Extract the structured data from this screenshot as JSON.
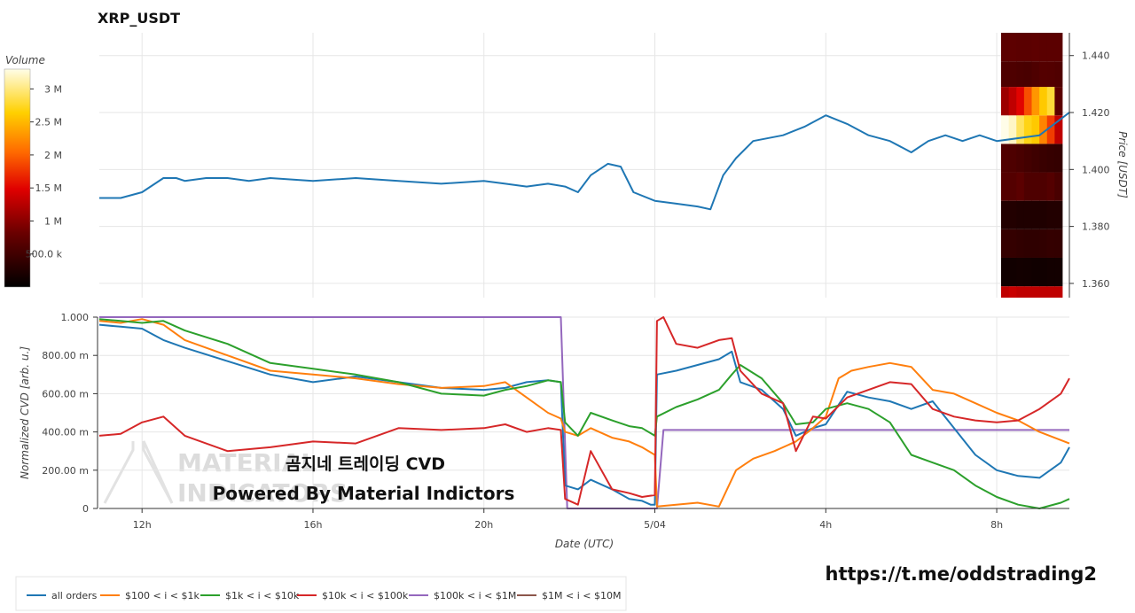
{
  "title": "XRP_USDT",
  "colors": {
    "all_orders": "#1f77b4",
    "s100_1k": "#ff7f0e",
    "s1k_10k": "#2ca02c",
    "s10k_100k": "#d62728",
    "s100k_1m": "#9467bd",
    "s1m_10m": "#8c564b"
  },
  "colorbar": {
    "label": "Volume",
    "ticks": [
      "3 M",
      "2.5 M",
      "2 M",
      "1.5 M",
      "1 M",
      "500.0 k"
    ],
    "tick_values": [
      3000000,
      2500000,
      2000000,
      1500000,
      1000000,
      500000
    ],
    "range": [
      0,
      3300000
    ]
  },
  "x_axis": {
    "label": "Date (UTC)",
    "ticks": [
      "12h",
      "16h",
      "20h",
      "5/04",
      "4h",
      "8h"
    ],
    "tick_hours": [
      12,
      16,
      20,
      24,
      28,
      32
    ],
    "range_hours": [
      11,
      33.7
    ]
  },
  "chart_data": [
    {
      "type": "line",
      "title": "XRP_USDT",
      "ylabel": "Price [USDT]",
      "ylim": [
        1.355,
        1.448
      ],
      "yticks": [
        "1.440",
        "1.420",
        "1.400",
        "1.380",
        "1.360"
      ],
      "ytick_values": [
        1.44,
        1.42,
        1.4,
        1.38,
        1.36
      ],
      "series": [
        {
          "key": "price",
          "color_key": "all_orders",
          "x_hours": [
            11,
            11.5,
            12,
            12.5,
            12.8,
            13,
            13.5,
            14,
            14.5,
            15,
            16,
            17,
            18,
            19,
            20,
            20.5,
            21,
            21.5,
            21.9,
            22.2,
            22.5,
            22.9,
            23.2,
            23.5,
            24,
            24.5,
            25,
            25.3,
            25.6,
            25.9,
            26.3,
            27,
            27.5,
            28,
            28.5,
            29,
            29.5,
            30,
            30.4,
            30.8,
            31.2,
            31.6,
            32,
            32.5,
            33,
            33.7
          ],
          "y": [
            1.39,
            1.39,
            1.392,
            1.397,
            1.397,
            1.396,
            1.397,
            1.397,
            1.396,
            1.397,
            1.396,
            1.397,
            1.396,
            1.395,
            1.396,
            1.395,
            1.394,
            1.395,
            1.394,
            1.392,
            1.398,
            1.402,
            1.401,
            1.392,
            1.389,
            1.388,
            1.387,
            1.386,
            1.398,
            1.404,
            1.41,
            1.412,
            1.415,
            1.419,
            1.416,
            1.412,
            1.41,
            1.406,
            1.41,
            1.412,
            1.41,
            1.412,
            1.41,
            1.411,
            1.412,
            1.42
          ]
        }
      ],
      "volume_profile": {
        "bins": [
          {
            "p0": 1.355,
            "p1": 1.359,
            "vol": [
              1300000,
              1350000,
              1300000,
              1300000,
              1300000,
              1300000,
              1300000,
              1300000
            ]
          },
          {
            "p0": 1.359,
            "p1": 1.369,
            "vol": [
              120000,
              130000,
              150000,
              140000,
              120000,
              130000,
              150000,
              150000
            ]
          },
          {
            "p0": 1.369,
            "p1": 1.379,
            "vol": [
              400000,
              400000,
              380000,
              360000,
              360000,
              380000,
              400000,
              390000
            ]
          },
          {
            "p0": 1.379,
            "p1": 1.389,
            "vol": [
              260000,
              260000,
              240000,
              240000,
              240000,
              240000,
              260000,
              260000
            ]
          },
          {
            "p0": 1.389,
            "p1": 1.399,
            "vol": [
              650000,
              650000,
              700000,
              600000,
              600000,
              600000,
              650000,
              560000
            ]
          },
          {
            "p0": 1.399,
            "p1": 1.409,
            "vol": [
              620000,
              600000,
              560000,
              520000,
              480000,
              440000,
              420000,
              400000
            ]
          },
          {
            "p0": 1.409,
            "p1": 1.419,
            "vol": [
              3300000,
              3200000,
              2900000,
              2700000,
              2600000,
              2200000,
              1800000,
              1300000
            ]
          },
          {
            "p0": 1.419,
            "p1": 1.429,
            "vol": [
              1100000,
              1300000,
              1500000,
              1900000,
              2300000,
              2600000,
              2800000,
              700000
            ]
          },
          {
            "p0": 1.429,
            "p1": 1.438,
            "vol": [
              600000,
              600000,
              580000,
              560000,
              600000,
              650000,
              640000,
              620000
            ]
          },
          {
            "p0": 1.438,
            "p1": 1.448,
            "vol": [
              700000,
              720000,
              700000,
              700000,
              720000,
              700000,
              700000,
              700000
            ]
          }
        ]
      }
    },
    {
      "type": "line",
      "xlabel": "Date (UTC)",
      "ylabel": "Normalized CVD [arb. u.]",
      "ylim": [
        0,
        1.0
      ],
      "yticks": [
        "1.000",
        "800.00 m",
        "600.00 m",
        "400.00 m",
        "200.00 m",
        "0"
      ],
      "ytick_values": [
        1.0,
        0.8,
        0.6,
        0.4,
        0.2,
        0
      ],
      "series": [
        {
          "name": "all orders",
          "color_key": "all_orders",
          "x_hours": [
            11,
            11.5,
            12,
            12.5,
            13,
            14,
            15,
            16,
            17,
            18,
            19,
            20,
            20.5,
            21,
            21.5,
            21.8,
            21.9,
            22.2,
            22.5,
            23,
            23.4,
            23.7,
            23.9,
            24,
            24.05,
            24.5,
            25,
            25.5,
            25.8,
            26,
            26.5,
            27,
            27.3,
            27.7,
            28,
            28.5,
            29,
            29.5,
            30,
            30.5,
            31,
            31.5,
            32,
            32.5,
            33,
            33.5,
            33.7
          ],
          "y": [
            0.96,
            0.95,
            0.94,
            0.88,
            0.84,
            0.77,
            0.7,
            0.66,
            0.69,
            0.66,
            0.63,
            0.62,
            0.63,
            0.66,
            0.67,
            0.66,
            0.12,
            0.1,
            0.15,
            0.1,
            0.05,
            0.04,
            0.02,
            0.02,
            0.7,
            0.72,
            0.75,
            0.78,
            0.82,
            0.66,
            0.62,
            0.52,
            0.38,
            0.42,
            0.44,
            0.61,
            0.58,
            0.56,
            0.52,
            0.56,
            0.42,
            0.28,
            0.2,
            0.17,
            0.16,
            0.24,
            0.32
          ]
        },
        {
          "name": "$100 < i < $1k",
          "color_key": "s100_1k",
          "x_hours": [
            11,
            11.5,
            12,
            12.5,
            13,
            14,
            15,
            16,
            17,
            18,
            19,
            20,
            20.5,
            21,
            21.5,
            21.8,
            21.9,
            22.2,
            22.5,
            23,
            23.4,
            23.7,
            24,
            24.05,
            24.5,
            25,
            25.5,
            25.9,
            26.3,
            26.8,
            27.3,
            27.7,
            28,
            28.3,
            28.6,
            29,
            29.5,
            30,
            30.5,
            31,
            31.5,
            32,
            32.5,
            33,
            33.7
          ],
          "y": [
            0.98,
            0.97,
            0.99,
            0.96,
            0.88,
            0.8,
            0.72,
            0.7,
            0.68,
            0.65,
            0.63,
            0.64,
            0.66,
            0.58,
            0.5,
            0.47,
            0.4,
            0.38,
            0.42,
            0.37,
            0.35,
            0.32,
            0.28,
            0.01,
            0.02,
            0.03,
            0.01,
            0.2,
            0.26,
            0.3,
            0.35,
            0.42,
            0.48,
            0.68,
            0.72,
            0.74,
            0.76,
            0.74,
            0.62,
            0.6,
            0.55,
            0.5,
            0.46,
            0.4,
            0.34
          ]
        },
        {
          "name": "$1k < i < $10k",
          "color_key": "s1k_10k",
          "x_hours": [
            11,
            11.5,
            12,
            12.5,
            13,
            14,
            15,
            16,
            17,
            18,
            19,
            20,
            20.5,
            21,
            21.5,
            21.8,
            21.9,
            22.2,
            22.5,
            23,
            23.4,
            23.7,
            24,
            24.05,
            24.5,
            25,
            25.5,
            25.8,
            26,
            26.5,
            27,
            27.3,
            27.7,
            28,
            28.5,
            29,
            29.5,
            30,
            30.5,
            31,
            31.5,
            32,
            32.5,
            33,
            33.5,
            33.7
          ],
          "y": [
            0.99,
            0.98,
            0.97,
            0.98,
            0.93,
            0.86,
            0.76,
            0.73,
            0.7,
            0.66,
            0.6,
            0.59,
            0.62,
            0.64,
            0.67,
            0.66,
            0.45,
            0.38,
            0.5,
            0.46,
            0.43,
            0.42,
            0.38,
            0.48,
            0.53,
            0.57,
            0.62,
            0.7,
            0.75,
            0.68,
            0.55,
            0.44,
            0.45,
            0.52,
            0.55,
            0.52,
            0.45,
            0.28,
            0.24,
            0.2,
            0.12,
            0.06,
            0.02,
            0.0,
            0.03,
            0.05
          ]
        },
        {
          "name": "$10k < i < $100k",
          "color_key": "s10k_100k",
          "x_hours": [
            11,
            11.5,
            12,
            12.5,
            13,
            14,
            15,
            16,
            17,
            18,
            19,
            20,
            20.5,
            21,
            21.5,
            21.8,
            21.9,
            22.2,
            22.5,
            23,
            23.4,
            23.7,
            24,
            24.05,
            24.2,
            24.5,
            25,
            25.5,
            25.8,
            26,
            26.5,
            27,
            27.3,
            27.7,
            28,
            28.5,
            29,
            29.5,
            30,
            30.5,
            31,
            31.5,
            32,
            32.5,
            33,
            33.5,
            33.7
          ],
          "y": [
            0.38,
            0.39,
            0.45,
            0.48,
            0.38,
            0.3,
            0.32,
            0.35,
            0.34,
            0.42,
            0.41,
            0.42,
            0.44,
            0.4,
            0.42,
            0.41,
            0.05,
            0.02,
            0.3,
            0.1,
            0.08,
            0.06,
            0.07,
            0.98,
            1.0,
            0.86,
            0.84,
            0.88,
            0.89,
            0.72,
            0.6,
            0.55,
            0.3,
            0.48,
            0.47,
            0.58,
            0.62,
            0.66,
            0.65,
            0.52,
            0.48,
            0.46,
            0.45,
            0.46,
            0.52,
            0.6,
            0.68
          ]
        },
        {
          "name": "$100k < i < $1M",
          "color_key": "s100k_1m",
          "x_hours": [
            11,
            21.8,
            21.95,
            24.05,
            24.2,
            33.7
          ],
          "y": [
            1.0,
            1.0,
            0.0,
            0.0,
            0.41,
            0.41
          ]
        },
        {
          "name": "$1M < i < $10M",
          "color_key": "s1m_10m",
          "x_hours": [],
          "y": []
        }
      ]
    }
  ],
  "overlay": {
    "watermark_line1": "MATERIAL",
    "watermark_line2": "INDICATORS",
    "line1": "곰지네 트레이딩 CVD",
    "line2": "Powered By Material Indictors",
    "url": "https://t.me/oddstrading2"
  },
  "legend": [
    {
      "label": "all orders",
      "color_key": "all_orders"
    },
    {
      "label": "$100 < i < $1k",
      "color_key": "s100_1k"
    },
    {
      "label": "$1k < i < $10k",
      "color_key": "s1k_10k"
    },
    {
      "label": "$10k < i < $100k",
      "color_key": "s10k_100k"
    },
    {
      "label": "$100k < i < $1M",
      "color_key": "s100k_1m"
    },
    {
      "label": "$1M < i < $10M",
      "color_key": "s1m_10m"
    }
  ]
}
